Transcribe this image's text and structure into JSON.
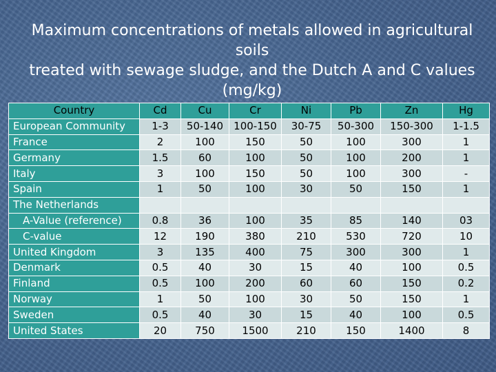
{
  "title": {
    "line1": "Maximum concentrations of metals allowed in agricultural soils",
    "line2": "treated with sewage sludge, and the Dutch A and C values",
    "line3": "(mg/kg)"
  },
  "table": {
    "headers": [
      "Country",
      "Cd",
      "Cu",
      "Cr",
      "Ni",
      "Pb",
      "Zn",
      "Hg"
    ],
    "rows": [
      {
        "country": "European Community",
        "indent": false,
        "values": [
          "1-3",
          "50-140",
          "100-150",
          "30-75",
          "50-300",
          "150-300",
          "1-1.5"
        ]
      },
      {
        "country": "France",
        "indent": false,
        "values": [
          "2",
          "100",
          "150",
          "50",
          "100",
          "300",
          "1"
        ]
      },
      {
        "country": "Germany",
        "indent": false,
        "values": [
          "1.5",
          "60",
          "100",
          "50",
          "100",
          "200",
          "1"
        ]
      },
      {
        "country": "Italy",
        "indent": false,
        "values": [
          "3",
          "100",
          "150",
          "50",
          "100",
          "300",
          "-"
        ]
      },
      {
        "country": "Spain",
        "indent": false,
        "values": [
          "1",
          "50",
          "100",
          "30",
          "50",
          "150",
          "1"
        ]
      },
      {
        "country": "The Netherlands",
        "indent": false,
        "values": [
          "",
          "",
          "",
          "",
          "",
          "",
          ""
        ]
      },
      {
        "country": "A-Value (reference)",
        "indent": true,
        "values": [
          "0.8",
          "36",
          "100",
          "35",
          "85",
          "140",
          "03"
        ]
      },
      {
        "country": "C-value",
        "indent": true,
        "values": [
          "12",
          "190",
          "380",
          "210",
          "530",
          "720",
          "10"
        ]
      },
      {
        "country": "United Kingdom",
        "indent": false,
        "values": [
          "3",
          "135",
          "400",
          "75",
          "300",
          "300",
          "1"
        ]
      },
      {
        "country": "Denmark",
        "indent": false,
        "values": [
          "0.5",
          "40",
          "30",
          "15",
          "40",
          "100",
          "0.5"
        ]
      },
      {
        "country": "Finland",
        "indent": false,
        "values": [
          "0.5",
          "100",
          "200",
          "60",
          "60",
          "150",
          "0.2"
        ]
      },
      {
        "country": "Norway",
        "indent": false,
        "values": [
          "1",
          "50",
          "100",
          "30",
          "50",
          "150",
          "1"
        ]
      },
      {
        "country": "Sweden",
        "indent": false,
        "values": [
          "0.5",
          "40",
          "30",
          "15",
          "40",
          "100",
          "0.5"
        ]
      },
      {
        "country": "United States",
        "indent": false,
        "values": [
          "20",
          "750",
          "1500",
          "210",
          "150",
          "1400",
          "8"
        ]
      }
    ]
  },
  "colors": {
    "header_bg": "#2f9f99",
    "row_odd": "#c9d9db",
    "row_even": "#e0eaeb",
    "slide_bg": "#4a6a96"
  }
}
